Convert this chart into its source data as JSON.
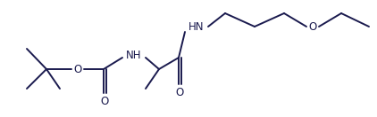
{
  "bg_color": "#ffffff",
  "line_color": "#1a1a4e",
  "line_width": 1.4,
  "font_size": 8.5,
  "font_color": "#1a1a4e",
  "figsize": [
    4.22,
    1.32
  ],
  "dpi": 100,
  "xlim": [
    0,
    422
  ],
  "ylim": [
    0,
    132
  ]
}
